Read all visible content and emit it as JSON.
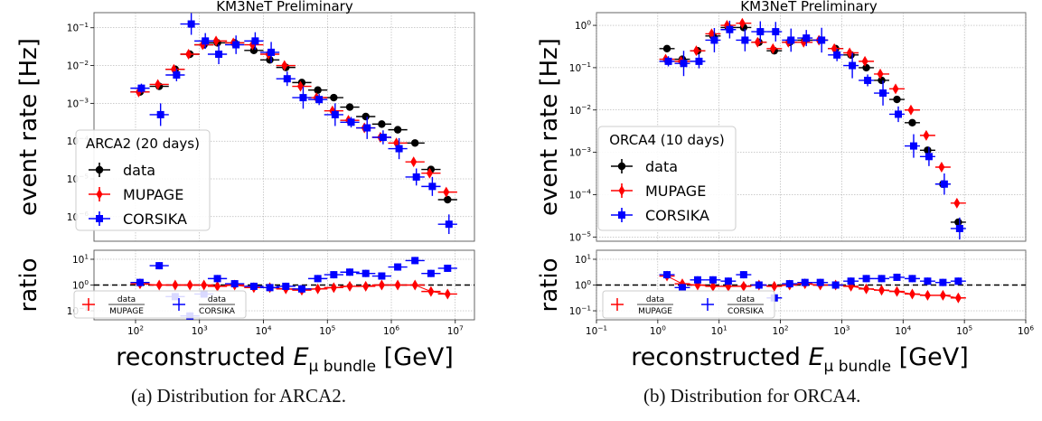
{
  "colors": {
    "data": "#000000",
    "mupage": "#ff0000",
    "corsika": "#0000ff",
    "frame": "#555555",
    "grid": "#9a9a9a"
  },
  "panels": [
    {
      "title": "KM3NeT Preliminary",
      "caption": "(a) Distribution for ARCA2.",
      "legend_title": "ARCA2 (20 days)",
      "series_labels": {
        "data": "data",
        "mupage": "MUPAGE",
        "corsika": "CORSIKA"
      },
      "ratio_legend": {
        "mupage_num": "data",
        "mupage_den": "MUPAGE",
        "corsika_num": "data",
        "corsika_den": "CORSIKA"
      },
      "ylabel": "event rate [Hz]",
      "ratio_ylabel": "ratio",
      "xlabel_pre": "reconstructed ",
      "xlabel_sym": "E",
      "xlabel_sub": "μ bundle",
      "xlabel_post": " [GeV]",
      "xticks": [
        {
          "e": 2,
          "t": "10"
        },
        {
          "e": 3,
          "t": "10"
        },
        {
          "e": 4,
          "t": "10"
        },
        {
          "e": 5,
          "t": "10"
        },
        {
          "e": 6,
          "t": "10"
        },
        {
          "e": 7,
          "t": "10"
        }
      ],
      "xtick_exps": [
        "2",
        "3",
        "4",
        "5",
        "6",
        "7"
      ],
      "yticks": [
        {
          "e": -1,
          "t": "10",
          "s": "−1"
        },
        {
          "e": -2,
          "t": "10",
          "s": "−2"
        },
        {
          "e": -3,
          "t": "10",
          "s": "−3"
        },
        {
          "e": -4,
          "t": "10",
          "s": "−4"
        },
        {
          "e": -5,
          "t": "10",
          "s": "−5"
        },
        {
          "e": -6,
          "t": "10",
          "s": "−6"
        }
      ],
      "rticks": [
        {
          "e": 1,
          "t": "10",
          "s": "1"
        },
        {
          "e": 0,
          "t": "10",
          "s": "0"
        },
        {
          "e": -1,
          "t": "10",
          "s": "−1"
        }
      ]
    },
    {
      "title": "KM3NeT Preliminary",
      "caption": "(b) Distribution for ORCA4.",
      "legend_title": "ORCA4 (10 days)",
      "series_labels": {
        "data": "data",
        "mupage": "MUPAGE",
        "corsika": "CORSIKA"
      },
      "ratio_legend": {
        "mupage_num": "data",
        "mupage_den": "MUPAGE",
        "corsika_num": "data",
        "corsika_den": "CORSIKA"
      },
      "ylabel": "event rate [Hz]",
      "ratio_ylabel": "ratio",
      "xlabel_pre": "reconstructed ",
      "xlabel_sym": "E",
      "xlabel_sub": "μ bundle",
      "xlabel_post": " [GeV]",
      "xticks": [
        {
          "e": -1,
          "t": "10"
        },
        {
          "e": 0,
          "t": "10"
        },
        {
          "e": 1,
          "t": "10"
        },
        {
          "e": 2,
          "t": "10"
        },
        {
          "e": 3,
          "t": "10"
        },
        {
          "e": 4,
          "t": "10"
        },
        {
          "e": 5,
          "t": "10"
        },
        {
          "e": 6,
          "t": "10"
        }
      ],
      "xtick_exps": [
        "−1",
        "0",
        "1",
        "2",
        "3",
        "4",
        "5",
        "6"
      ],
      "yticks": [
        {
          "e": 0,
          "t": "10",
          "s": "0"
        },
        {
          "e": -1,
          "t": "10",
          "s": "−1"
        },
        {
          "e": -2,
          "t": "10",
          "s": "−2"
        },
        {
          "e": -3,
          "t": "10",
          "s": "−3"
        },
        {
          "e": -4,
          "t": "10",
          "s": "−4"
        },
        {
          "e": -5,
          "t": "10",
          "s": "−5"
        }
      ],
      "rticks": [
        {
          "e": 1,
          "t": "10",
          "s": "1"
        },
        {
          "e": 0,
          "t": "10",
          "s": "0"
        },
        {
          "e": -1,
          "t": "10",
          "s": "−1"
        }
      ]
    }
  ],
  "chart_data": [
    {
      "type": "scatter",
      "title": "KM3NeT Preliminary",
      "xlabel": "reconstructed E_μ bundle [GeV]",
      "ylabel": "event rate [Hz]",
      "xscale": "log",
      "yscale": "log",
      "xlim_log10": [
        1.35,
        7.3
      ],
      "ylim_log10": [
        -6.65,
        -0.6
      ],
      "ratio_ylim_log10": [
        -1.35,
        1.35
      ],
      "legend_position": "left",
      "grid": true,
      "bins_log10": [
        2.07,
        2.37,
        2.62,
        2.85,
        3.07,
        3.28,
        3.55,
        3.85,
        4.1,
        4.35,
        4.6,
        4.85,
        5.1,
        5.35,
        5.6,
        5.85,
        6.1,
        6.37,
        6.62,
        6.88
      ],
      "series": [
        {
          "name": "data",
          "log10_rate": [
            -2.7,
            -2.55,
            -2.1,
            -1.7,
            -1.45,
            -1.4,
            -1.4,
            -1.6,
            -1.85,
            -2.05,
            -2.45,
            -2.65,
            -2.85,
            -3.1,
            -3.35,
            -3.55,
            -3.7,
            -4.05,
            -4.75,
            -5.55
          ]
        },
        {
          "name": "MUPAGE",
          "log10_rate": [
            -2.7,
            -2.5,
            -2.1,
            -1.7,
            -1.45,
            -1.35,
            -1.4,
            -1.45,
            -1.7,
            -2.0,
            -2.55,
            -2.85,
            -3.2,
            -3.45,
            -3.65,
            -3.9,
            -4.05,
            -4.55,
            -4.85,
            -5.35
          ]
        },
        {
          "name": "CORSIKA",
          "log10_rate": [
            -2.6,
            -3.3,
            -2.25,
            -0.9,
            -1.35,
            -1.7,
            -1.45,
            -1.35,
            -1.65,
            -2.35,
            -2.85,
            -2.9,
            -3.3,
            -3.5,
            -3.65,
            -3.9,
            -4.2,
            -4.95,
            -5.2,
            -6.2
          ]
        }
      ],
      "ratio_series": [
        {
          "name": "data/MUPAGE",
          "log10_ratio": [
            0.05,
            0.0,
            0.0,
            0.0,
            0.0,
            -0.05,
            0.0,
            -0.1,
            -0.1,
            -0.15,
            -0.2,
            -0.15,
            -0.1,
            -0.05,
            -0.05,
            0.0,
            0.0,
            0.0,
            -0.25,
            -0.35
          ]
        },
        {
          "name": "data/CORSIKA",
          "log10_ratio": [
            0.1,
            0.75,
            -0.45,
            -1.2,
            -0.35,
            0.25,
            0.05,
            -0.05,
            -0.1,
            -0.05,
            -0.15,
            0.25,
            0.4,
            0.5,
            0.45,
            0.35,
            0.7,
            0.95,
            0.45,
            0.65
          ]
        }
      ]
    },
    {
      "type": "scatter",
      "title": "KM3NeT Preliminary",
      "xlabel": "reconstructed E_μ bundle [GeV]",
      "ylabel": "event rate [Hz]",
      "xscale": "log",
      "yscale": "log",
      "xlim_log10": [
        -1,
        6
      ],
      "ylim_log10": [
        -5.1,
        0.3
      ],
      "ratio_ylim_log10": [
        -1.35,
        1.35
      ],
      "legend_position": "left",
      "grid": true,
      "bins_log10": [
        0.15,
        0.4,
        0.65,
        0.9,
        1.15,
        1.4,
        1.65,
        1.9,
        2.15,
        2.4,
        2.65,
        2.9,
        3.15,
        3.4,
        3.65,
        3.9,
        4.15,
        4.4,
        4.65,
        4.9
      ],
      "series": [
        {
          "name": "data",
          "log10_rate": [
            -0.55,
            -0.8,
            -0.6,
            -0.25,
            -0.05,
            -0.05,
            -0.4,
            -0.6,
            -0.4,
            -0.35,
            -0.35,
            -0.55,
            -0.7,
            -1.0,
            -1.3,
            -1.75,
            -2.3,
            -2.95,
            -3.75,
            -4.65
          ]
        },
        {
          "name": "MUPAGE",
          "log10_rate": [
            -0.8,
            -0.85,
            -0.6,
            -0.2,
            0.0,
            0.05,
            -0.4,
            -0.55,
            -0.4,
            -0.4,
            -0.35,
            -0.55,
            -0.65,
            -0.85,
            -1.15,
            -1.5,
            -2.0,
            -2.6,
            -3.35,
            -4.2
          ]
        },
        {
          "name": "CORSIKA",
          "log10_rate": [
            -0.85,
            -0.9,
            -0.85,
            -0.35,
            -0.1,
            -0.35,
            -0.15,
            -0.15,
            -0.35,
            -0.3,
            -0.35,
            -0.7,
            -0.95,
            -1.3,
            -1.6,
            -2.1,
            -2.85,
            -3.1,
            -3.75,
            -4.8
          ]
        }
      ],
      "ratio_series": [
        {
          "name": "data/MUPAGE",
          "log10_ratio": [
            0.35,
            0.05,
            0.0,
            -0.05,
            -0.05,
            -0.05,
            0.0,
            -0.05,
            0.0,
            0.05,
            0.0,
            0.0,
            -0.05,
            -0.15,
            -0.2,
            -0.25,
            -0.35,
            -0.4,
            -0.4,
            -0.5
          ]
        },
        {
          "name": "data/CORSIKA",
          "log10_ratio": [
            0.4,
            -0.1,
            0.2,
            0.2,
            0.15,
            0.4,
            0.0,
            -0.5,
            0.05,
            0.1,
            0.1,
            0.0,
            0.15,
            0.25,
            0.25,
            0.3,
            0.25,
            0.15,
            0.1,
            0.15
          ]
        }
      ]
    }
  ]
}
